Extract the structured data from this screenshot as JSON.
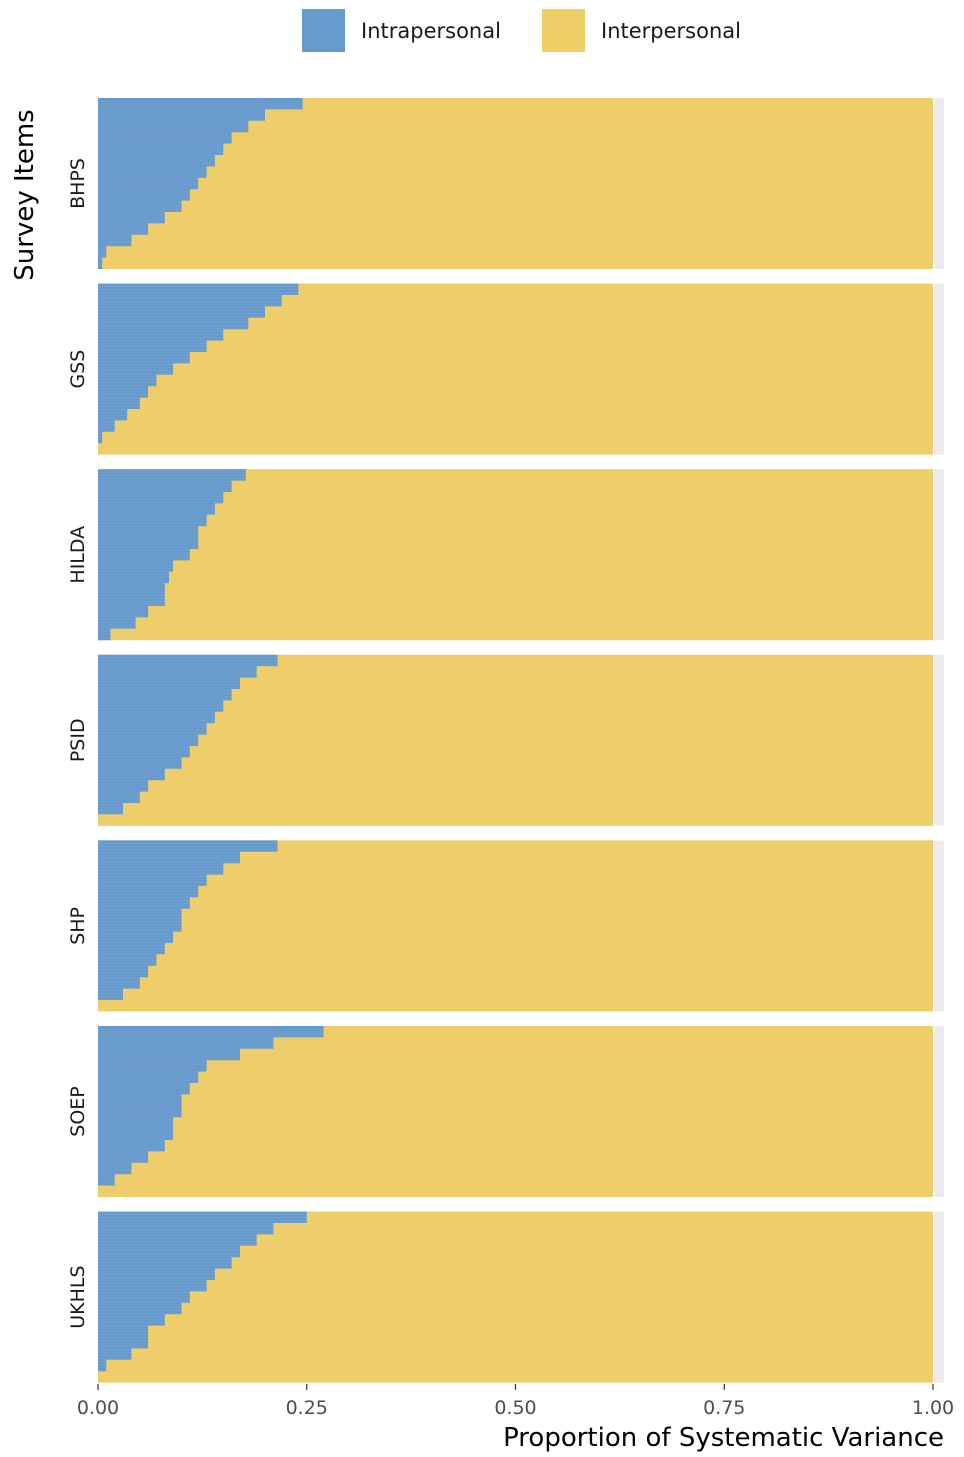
{
  "chart_data": {
    "type": "bar",
    "orientation": "horizontal",
    "stacked": true,
    "xlabel": "Proportion of Systematic Variance",
    "ylabel": "Survey Items",
    "xlim": [
      0,
      1
    ],
    "xticks": [
      "0.00",
      "0.25",
      "0.50",
      "0.75",
      "1.00"
    ],
    "legend_position": "top",
    "series": [
      {
        "name": "Intrapersonal",
        "color": "#6699cc"
      },
      {
        "name": "Interpersonal",
        "color": "#eecc66"
      }
    ],
    "facets": [
      {
        "name": "BHPS",
        "curve_x": [
          0.005,
          0.01,
          0.04,
          0.06,
          0.08,
          0.1,
          0.11,
          0.12,
          0.13,
          0.14,
          0.15,
          0.16,
          0.18,
          0.2,
          0.245
        ]
      },
      {
        "name": "GSS",
        "curve_x": [
          0.0,
          0.005,
          0.02,
          0.035,
          0.05,
          0.06,
          0.07,
          0.09,
          0.11,
          0.13,
          0.15,
          0.18,
          0.2,
          0.22,
          0.24
        ]
      },
      {
        "name": "HILDA",
        "curve_x": [
          0.015,
          0.045,
          0.06,
          0.08,
          0.08,
          0.085,
          0.09,
          0.11,
          0.12,
          0.12,
          0.13,
          0.14,
          0.15,
          0.16,
          0.177
        ]
      },
      {
        "name": "PSID",
        "curve_x": [
          0.0,
          0.03,
          0.05,
          0.06,
          0.08,
          0.1,
          0.11,
          0.12,
          0.13,
          0.14,
          0.15,
          0.16,
          0.17,
          0.19,
          0.215
        ]
      },
      {
        "name": "SHP",
        "curve_x": [
          0.0,
          0.03,
          0.05,
          0.06,
          0.07,
          0.08,
          0.09,
          0.1,
          0.1,
          0.11,
          0.12,
          0.13,
          0.15,
          0.17,
          0.215
        ]
      },
      {
        "name": "SOEP",
        "curve_x": [
          0.0,
          0.02,
          0.04,
          0.06,
          0.08,
          0.09,
          0.09,
          0.1,
          0.1,
          0.11,
          0.12,
          0.13,
          0.17,
          0.21,
          0.27
        ]
      },
      {
        "name": "UKHLS",
        "curve_x": [
          0.0,
          0.01,
          0.04,
          0.06,
          0.06,
          0.08,
          0.1,
          0.11,
          0.13,
          0.14,
          0.16,
          0.17,
          0.19,
          0.21,
          0.25
        ]
      }
    ]
  }
}
